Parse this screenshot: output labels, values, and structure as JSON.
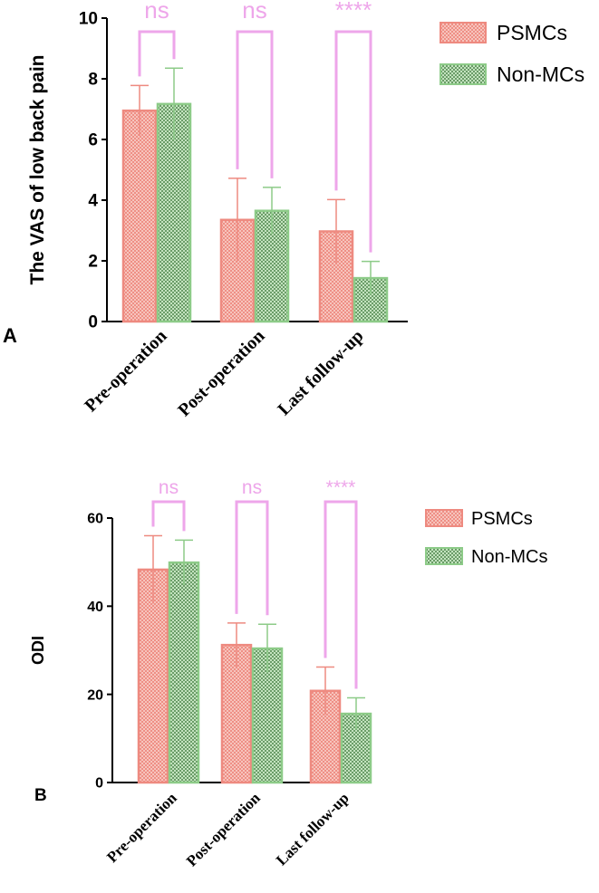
{
  "chart_data": [
    {
      "type": "bar",
      "panel_label": "A",
      "title": "",
      "xlabel": "",
      "ylabel": "The VAS of low back pain",
      "ylim": [
        0,
        10
      ],
      "yticks": [
        "0",
        "2",
        "4",
        "6",
        "8",
        "10"
      ],
      "categories": [
        "Pre-operation",
        "Post-operation",
        "Last follow-up"
      ],
      "series": [
        {
          "name": "PSMCs",
          "values": [
            6.95,
            3.35,
            2.97
          ],
          "err_high": [
            7.78,
            4.72,
            4.02
          ],
          "err_low": [
            6.12,
            1.98,
            1.92
          ]
        },
        {
          "name": "Non-MCs",
          "values": [
            7.17,
            3.65,
            1.43
          ],
          "err_high": [
            8.35,
            4.42,
            1.98
          ],
          "err_low": [
            5.99,
            2.88,
            0.88
          ]
        }
      ],
      "significance": [
        "ns",
        "ns",
        "****"
      ],
      "legend_position": "top-right",
      "grid": false
    },
    {
      "type": "bar",
      "panel_label": "B",
      "title": "",
      "xlabel": "",
      "ylabel": "ODI",
      "ylim": [
        0,
        60
      ],
      "yticks": [
        "0",
        "20",
        "40",
        "60"
      ],
      "categories": [
        "Pre-operation",
        "Post-operation",
        "Last follow-up"
      ],
      "series": [
        {
          "name": "PSMCs",
          "values": [
            48.3,
            31.2,
            20.8
          ],
          "err_high": [
            56.0,
            36.2,
            26.2
          ],
          "err_low": [
            40.6,
            26.2,
            15.4
          ]
        },
        {
          "name": "Non-MCs",
          "values": [
            49.9,
            30.4,
            15.6
          ],
          "err_high": [
            55.0,
            35.9,
            19.2
          ],
          "err_low": [
            44.8,
            24.9,
            12.0
          ]
        }
      ],
      "significance": [
        "ns",
        "ns",
        "****"
      ],
      "legend_position": "top-right",
      "grid": false
    }
  ],
  "colors": {
    "psmcs_fill": "#f4b3aa",
    "psmcs_stroke": "#ee8a80",
    "nonmcs_fill": "#a9d6a5",
    "nonmcs_stroke": "#8dcb88",
    "significance": "#eea6ea",
    "axis": "#000000"
  }
}
